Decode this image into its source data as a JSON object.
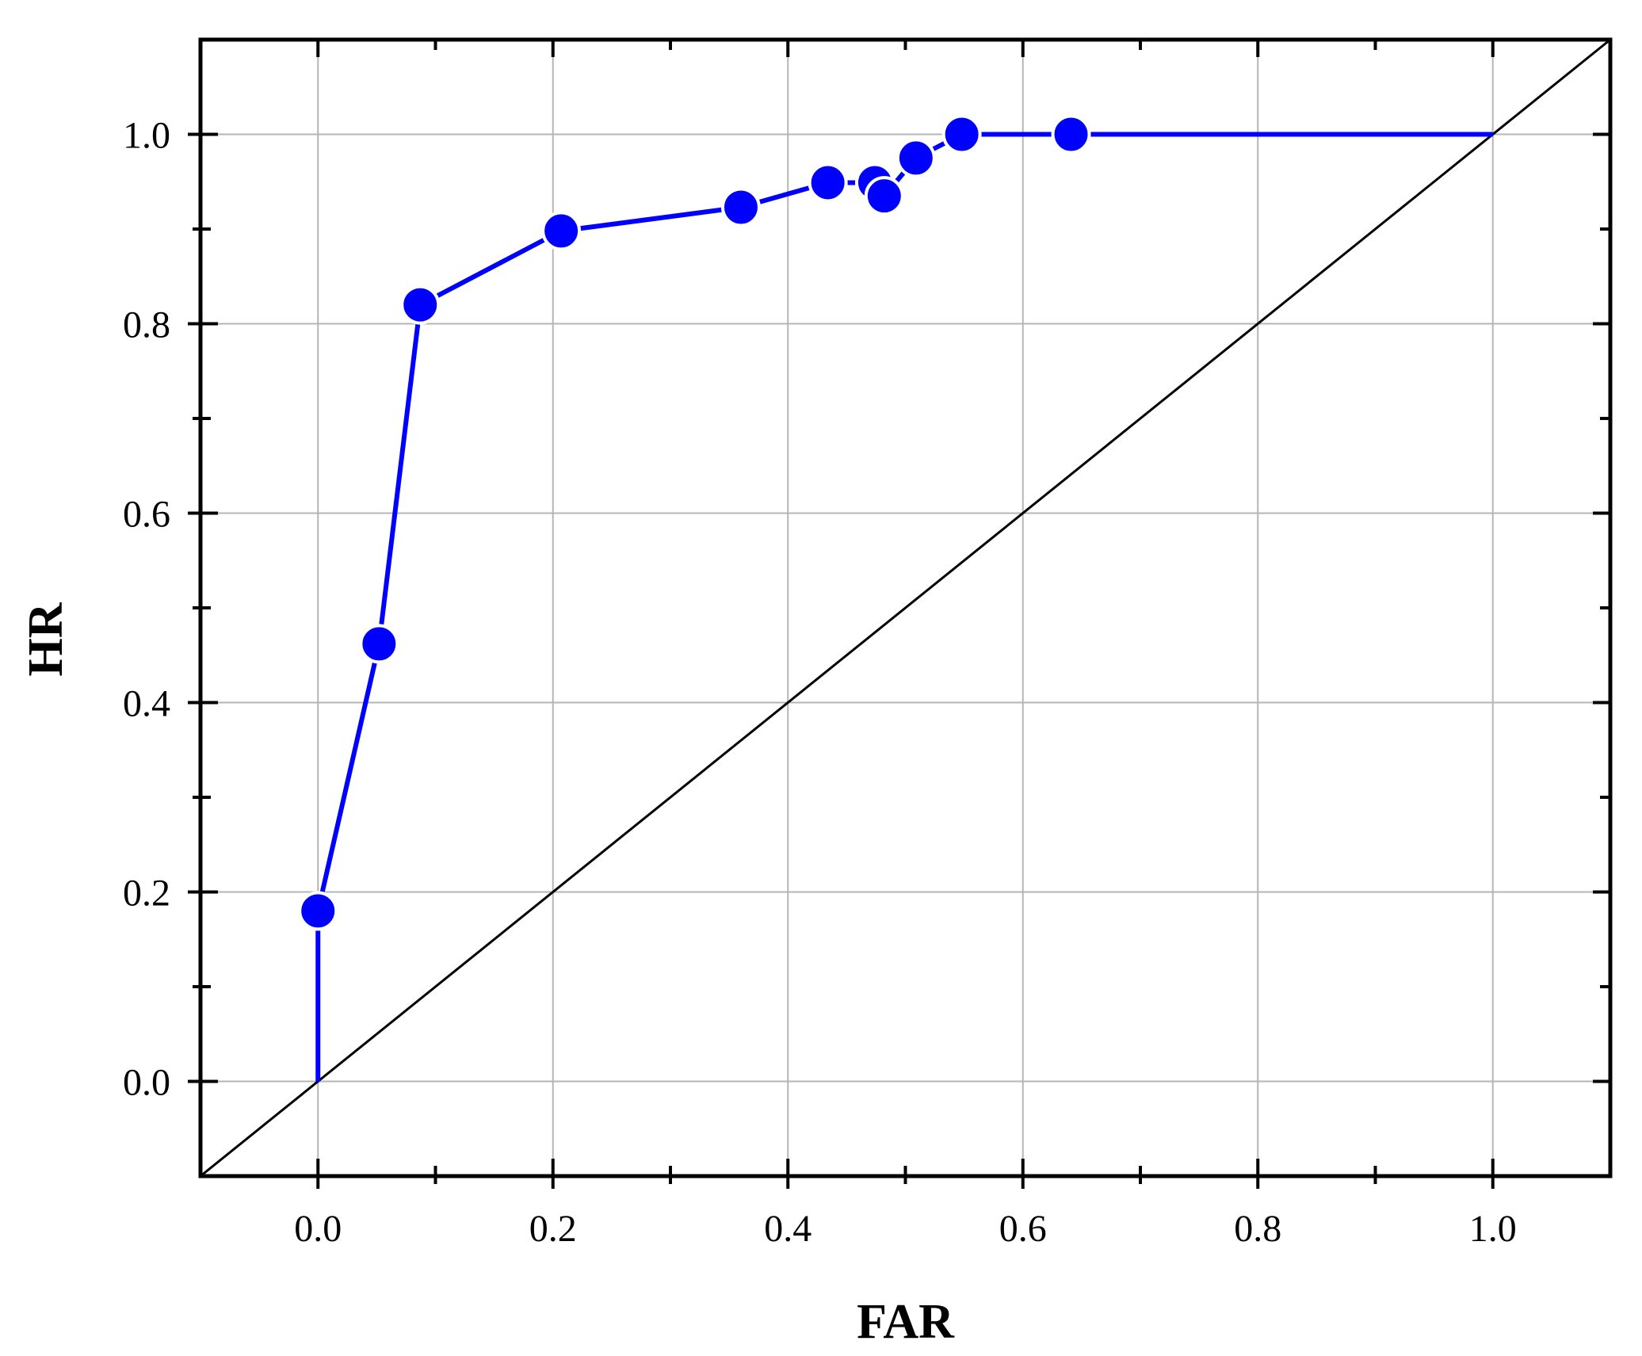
{
  "chart_data": {
    "type": "line",
    "xlabel": "FAR",
    "ylabel": "HR",
    "xlim": [
      -0.1,
      1.1
    ],
    "ylim": [
      -0.1,
      1.1
    ],
    "x_ticks": [
      "0.0",
      "0.2",
      "0.4",
      "0.6",
      "0.8",
      "1.0"
    ],
    "y_ticks": [
      "0.0",
      "0.2",
      "0.4",
      "0.6",
      "0.8",
      "1.0"
    ],
    "grid": true,
    "series": [
      {
        "color": "#0000ff",
        "marker": "circle",
        "x": [
          0.0,
          0.0,
          0.052,
          0.087,
          0.207,
          0.36,
          0.434,
          0.474,
          0.482,
          0.509,
          0.548,
          0.641,
          1.0
        ],
        "y": [
          0.0,
          0.18,
          0.462,
          0.82,
          0.898,
          0.923,
          0.949,
          0.949,
          0.935,
          0.975,
          1.0,
          1.0,
          1.0
        ],
        "markers": [
          false,
          true,
          true,
          true,
          true,
          true,
          true,
          true,
          true,
          true,
          true,
          true,
          false
        ]
      },
      {
        "color": "#000000",
        "marker": "none",
        "x": [
          -0.1,
          1.1
        ],
        "y": [
          -0.1,
          1.1
        ]
      }
    ]
  }
}
